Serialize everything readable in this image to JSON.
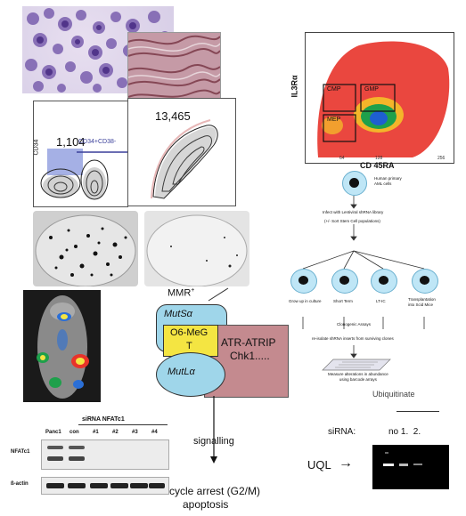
{
  "flow_facs": {
    "y_label": "CD34",
    "gate_count": "1,104",
    "gate_label": "CD34+CD38-",
    "right_count": "13,465"
  },
  "flow_il3": {
    "y_axis": "IL3Rα",
    "x_axis": "CD 45RA",
    "gates": [
      "CMP",
      "GMP",
      "MEP"
    ],
    "x_ticks": [
      "64",
      "128",
      "256"
    ]
  },
  "workflow": {
    "steps": [
      "Human primary\nAML cells",
      "Infect with Lentiviral shRNA library",
      "(+/- Sort Stem Cell populations)",
      "Grow up in culture",
      "Short Term",
      "LT-IC",
      "Transplantation\ninto Scid Mice",
      "Clonogenic Assays",
      "re-isolate shRNA inserts from surviving clones",
      "Measure alterations in abundance\nusing barcode arrays"
    ]
  },
  "mmr": {
    "title": "MMR",
    "title_sup": "+",
    "muts": "MutSα",
    "lesion_line1": "O6-MeG",
    "lesion_line2": "T",
    "mutl": "MutLα",
    "atr_line1": "ATR-ATRIP",
    "atr_line2": "Chk1.....",
    "signalling": "signalling",
    "outcome_line1": "cycle arrest (G2/M)",
    "outcome_line2": "apoptosis"
  },
  "western": {
    "header": "siRNA NFATc1",
    "lanes": [
      "Panc1",
      "con",
      "#1",
      "#2",
      "#3",
      "#4"
    ],
    "rows": [
      "NFATc1",
      "ß-actin"
    ]
  },
  "ubiquitin": {
    "top_text": "Ubiquitinate",
    "sirna_label": "siRNA:",
    "lane_labels": "no 1.  2.",
    "uql_label": "UQL",
    "arrow": "→"
  },
  "colors": {
    "mutS_fill": "#9fd6ea",
    "lesion_fill": "#f4e542",
    "atr_fill": "#c48a8f",
    "flow_red": "#e8332a",
    "flow_green": "#1ea04b",
    "cell_blue": "#bfe6f6"
  }
}
